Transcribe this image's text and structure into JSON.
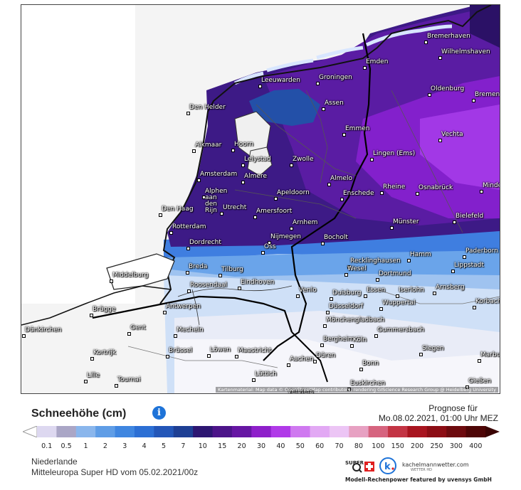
{
  "map": {
    "attribution": "Kartenmaterial: Map data © OpenStreetMap contributors, rendering GIScience Research Group @ Heidelberg University",
    "cities": [
      "Bremerhaven",
      "Wilhelmshaven",
      "Emden",
      "Oldenburg",
      "Bremen",
      "Leeuwarden",
      "Groningen",
      "Assen",
      "Den Helder",
      "Emmen",
      "Vechta",
      "Alkmaar",
      "Hoorn",
      "Lelystad",
      "Zwolle",
      "Lingen (Ems)",
      "Amsterdam",
      "Almere",
      "Almelo",
      "Alphen aan den Rijn",
      "Apeldoorn",
      "Rheine",
      "Osnabrück",
      "Minden",
      "Den Haag",
      "Utrecht",
      "Amersfoort",
      "Enschede",
      "Bielefeld",
      "Rotterdam",
      "Arnhem",
      "Münster",
      "Dordrecht",
      "Nijmegen",
      "Bocholt",
      "Oss",
      "Paderborn",
      "Hamm",
      "Recklinghausen",
      "Breda",
      "Tilburg",
      "Wesel",
      "Dortmund",
      "Middelburg",
      "Lippstadt",
      "Roosendaal",
      "Eindhoven",
      "Venlo",
      "Duisburg",
      "Essen",
      "Iserlohn",
      "Arnsberg",
      "Düsseldorf",
      "Wuppertal",
      "Antwerpen",
      "Brügge",
      "Korbach",
      "Mönchengladbach",
      "Dünkirchen",
      "Gent",
      "Mecheln",
      "Bergheim",
      "Köln",
      "Gummersbach",
      "Kortrijk",
      "Brüssel",
      "Löwen",
      "Maastricht",
      "Aachen",
      "Düren",
      "Siegen",
      "Marburg",
      "Lille",
      "Tournai",
      "Bonn",
      "Lüttich",
      "Verviers",
      "Euskirchen",
      "Gießen"
    ]
  },
  "legend": {
    "title": "Schneehöhe (cm)",
    "info_icon": "info-icon",
    "forecast_label": "Prognose für",
    "forecast_time": "Mo.08.02.2021, 01:00 Uhr MEZ",
    "ticks": [
      "0.1",
      "0.5",
      "1",
      "2",
      "3",
      "4",
      "5",
      "7",
      "10",
      "15",
      "20",
      "30",
      "40",
      "50",
      "60",
      "70",
      "80",
      "100",
      "150",
      "200",
      "250",
      "300",
      "400"
    ],
    "colors": [
      "#ddd8f0",
      "#aaa6c6",
      "#8ab6ec",
      "#5f9de6",
      "#3f86e0",
      "#2c6fd4",
      "#2356b8",
      "#1e3f94",
      "#2d1672",
      "#4c1489",
      "#6616a3",
      "#8e1fca",
      "#b03ae8",
      "#cf79f0",
      "#e2a9f4",
      "#ecc5f5",
      "#e7a1c2",
      "#d6647f",
      "#c33444",
      "#a8141f",
      "#8c0d14",
      "#6d0a0e",
      "#4e0506"
    ]
  },
  "footer": {
    "region": "Niederlande",
    "model": "Mitteleuropa Super HD vom 05.02.2021/00z",
    "logo_site": "kachelmannwetter.com",
    "logo_sub": "WETTER HD",
    "logo_power": "Modell-Rechenpower featured by uvensys GmbH"
  }
}
